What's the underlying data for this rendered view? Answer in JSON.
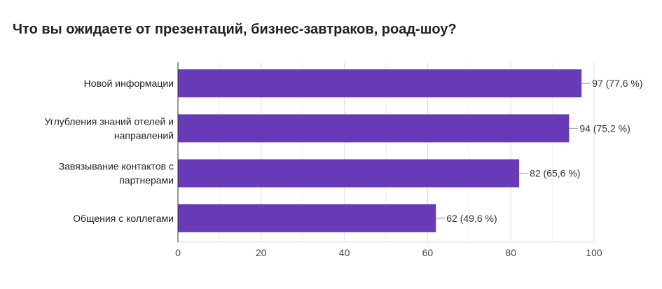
{
  "chart_data": {
    "type": "bar",
    "orientation": "horizontal",
    "title": "Что вы ожидаете от презентаций, бизнес-завтраков, роад-шоу?",
    "categories": [
      [
        "Новой информации"
      ],
      [
        "Углубления знаний отелей и",
        "направлений"
      ],
      [
        "Завязывание контактов с",
        "партнерами"
      ],
      [
        "Общения с коллегами"
      ]
    ],
    "values": [
      97,
      94,
      82,
      62
    ],
    "data_labels": [
      "97 (77,6 %)",
      "94 (75,2 %)",
      "82 (65,6 %)",
      "62 (49,6 %)"
    ],
    "xlim": [
      0,
      100
    ],
    "x_ticks": [
      "0",
      "20",
      "40",
      "60",
      "80",
      "100"
    ],
    "grid": true,
    "bar_color": "#673ab7"
  }
}
